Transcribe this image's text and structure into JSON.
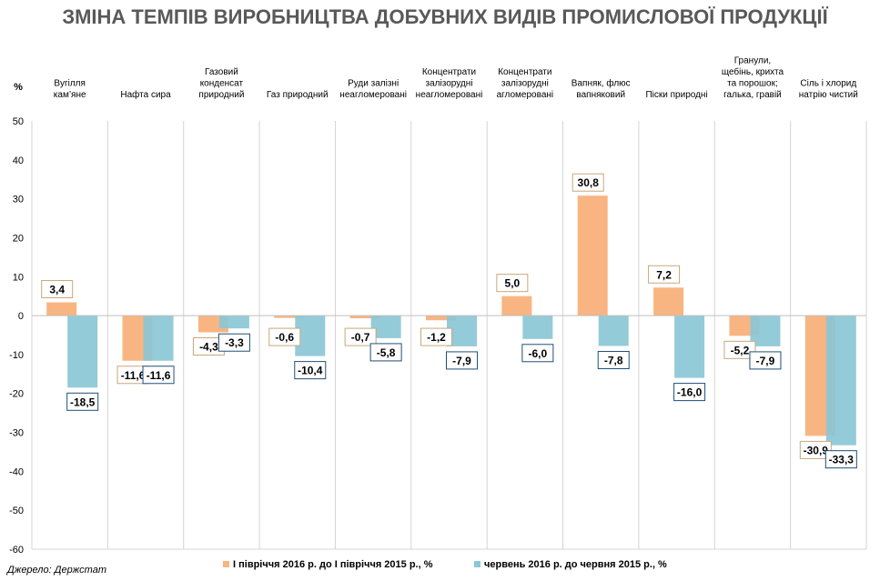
{
  "chart_data": {
    "type": "bar",
    "title": "ЗМІНА ТЕМПІВ ВИРОБНИЦТВА ДОБУВНИХ ВИДІВ ПРОМИСЛОВОЇ ПРОДУКЦІЇ",
    "ylabel": "%",
    "ylim": [
      -60,
      50
    ],
    "yticks": [
      "50",
      "40",
      "30",
      "20",
      "10",
      "0",
      "-10",
      "-20",
      "-30",
      "-40",
      "-50",
      "-60"
    ],
    "grid": false,
    "legend_position": "bottom",
    "categories": [
      "Вугілля кам’яне",
      "Нафта сира",
      "Газовий конденсат природний",
      "Газ природний",
      "Руди залізні неагломеровані",
      "Концентрати залізорудні неагломеровані",
      "Концентрати залізорудні агломеровані",
      "Вапняк, флюс вапняковий",
      "Піски природні",
      "Гранули, щебінь, крихта та порошок; галька, гравій",
      "Сіль і хлорид натрію чистий"
    ],
    "series": [
      {
        "name": "І півріччя  2016 р. до І півріччя  2015 р., %",
        "color": "#F8B581",
        "values": [
          3.4,
          -11.6,
          -4.3,
          -0.6,
          -0.7,
          -1.2,
          5.0,
          30.8,
          7.2,
          -5.2,
          -30.9
        ],
        "labels": [
          "3,4",
          "-11,6",
          "-4,3",
          "-0,6",
          "-0,7",
          "-1,2",
          "5,0",
          "30,8",
          "7,2",
          "-5,2",
          "-30,9"
        ],
        "label_border": "#C9A77A"
      },
      {
        "name": "червень  2016 р. до червня  2015 р., %",
        "color": "#8BC7D6",
        "values": [
          -18.5,
          -11.6,
          -3.3,
          -10.4,
          -5.8,
          -7.9,
          -6.0,
          -7.8,
          -16.0,
          -7.9,
          -33.3
        ],
        "labels": [
          "-18,5",
          "-11,6",
          "-3,3",
          "-10,4",
          "-5,8",
          "-7,9",
          "-6,0",
          "-7,8",
          "-16,0",
          "-7,9",
          "-33,3"
        ],
        "label_border": "#1F4E79"
      }
    ],
    "source": "Джерело: Держстат"
  }
}
